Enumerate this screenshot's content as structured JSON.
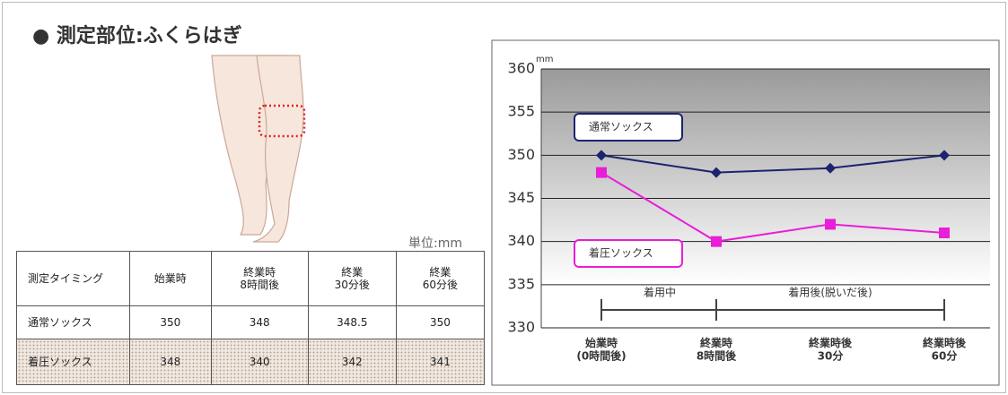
{
  "heading": "● 測定部位:ふくらはぎ",
  "unit": "単位:mm",
  "table": {
    "header": [
      "測定タイミング",
      "始業時",
      "終業時\n8時間後",
      "終業\n30分後",
      "終業\n60分後"
    ],
    "rows": [
      [
        "通常ソックス",
        350,
        348,
        348.5,
        350
      ],
      [
        "着圧ソックス",
        348,
        340,
        342,
        341
      ]
    ]
  },
  "chart_data": {
    "type": "line",
    "y_unit": "mm",
    "categories": [
      "始業時\n(0時間後)",
      "終業時\n8時間後",
      "終業時後\n30分",
      "終業時後\n60分"
    ],
    "series": [
      {
        "name": "通常ソックス",
        "color": "#1c2470",
        "marker": "diamond",
        "values": [
          350,
          348,
          348.5,
          350
        ]
      },
      {
        "name": "着圧ソックス",
        "color": "#e81ed8",
        "marker": "square",
        "values": [
          348,
          340,
          342,
          341
        ]
      }
    ],
    "ylim": [
      330,
      360
    ],
    "yticks": [
      330,
      335,
      340,
      345,
      350,
      355,
      360
    ],
    "grid": true,
    "annotations": [
      "着用中",
      "着用後(脱いだ後)"
    ]
  }
}
